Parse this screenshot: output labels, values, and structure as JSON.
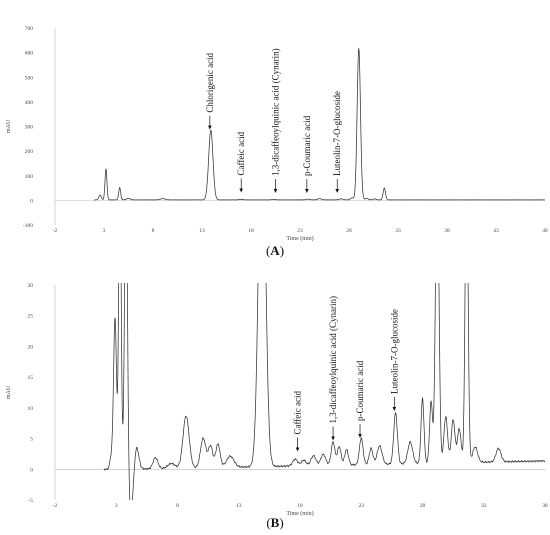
{
  "figure": {
    "panels": [
      {
        "id": "A",
        "label_text": "(A)",
        "label_letter": "A",
        "xlabel": "Time (min)",
        "ylabel": "mAU",
        "x_ticks": [
          "-2",
          "3",
          "8",
          "13",
          "18",
          "23",
          "28",
          "33",
          "38",
          "43",
          "48"
        ],
        "y_ticks": [
          "700",
          "600",
          "500",
          "400",
          "300",
          "200",
          "100",
          "0",
          "-100"
        ],
        "annotations": [
          {
            "text": "Chlorigenic acid",
            "x": 13.8,
            "arrow_tip": 275
          },
          {
            "text": "Caffeic acid",
            "x": 17.0,
            "arrow_tip": 20
          },
          {
            "text": "1,3-dicaffeoylquinic acid (Cynarin)",
            "x": 20.5,
            "arrow_tip": 18
          },
          {
            "text": "p-Coumaric acid",
            "x": 23.7,
            "arrow_tip": 18
          },
          {
            "text": "Luteolin-7-O-glucoside",
            "x": 26.8,
            "arrow_tip": 18
          }
        ]
      },
      {
        "id": "B",
        "label_text": "(B)",
        "label_letter": "B",
        "xlabel": "Time (min)",
        "ylabel": "mAU",
        "x_ticks": [
          "-2",
          "3",
          "8",
          "13",
          "18",
          "23",
          "28",
          "33",
          "38"
        ],
        "y_ticks": [
          "30",
          "25",
          "20",
          "15",
          "10",
          "5",
          "0",
          "-5"
        ],
        "annotations": [
          {
            "text": "Caffeic acid",
            "x": 17.8,
            "arrow_tip": 2.4
          },
          {
            "text": "1,3-dicaffeoylquinic acid (Cynarin)",
            "x": 20.7,
            "arrow_tip": 4.2
          },
          {
            "text": "p-Coumaric acid",
            "x": 22.9,
            "arrow_tip": 4.6
          },
          {
            "text": "Luteolin-7-O-glucoside",
            "x": 25.7,
            "arrow_tip": 9.0
          }
        ]
      }
    ]
  },
  "chart_data": [
    {
      "type": "line",
      "xlabel": "Time (min)",
      "ylabel": "mAU",
      "xlim": [
        -2,
        48
      ],
      "ylim": [
        -100,
        700
      ],
      "baseline": 2,
      "peaks": [
        {
          "t": 2.6,
          "h": 20,
          "w": 0.12
        },
        {
          "t": 3.2,
          "h": 125,
          "w": 0.1
        },
        {
          "t": 4.6,
          "h": 50,
          "w": 0.1
        },
        {
          "t": 5.5,
          "h": 6,
          "w": 0.2
        },
        {
          "t": 9.0,
          "h": 5,
          "w": 0.25
        },
        {
          "t": 13.9,
          "h": 283,
          "w": 0.22
        },
        {
          "t": 17.0,
          "h": 2,
          "w": 0.2
        },
        {
          "t": 20.3,
          "h": 2,
          "w": 0.2
        },
        {
          "t": 23.8,
          "h": 3,
          "w": 0.2
        },
        {
          "t": 25.0,
          "h": 5,
          "w": 0.2
        },
        {
          "t": 27.2,
          "h": 4,
          "w": 0.2
        },
        {
          "t": 28.3,
          "h": 8,
          "w": 0.15
        },
        {
          "t": 29.0,
          "h": 615,
          "w": 0.17
        },
        {
          "t": 29.8,
          "h": 6,
          "w": 0.15
        },
        {
          "t": 30.6,
          "h": 4,
          "w": 0.15
        },
        {
          "t": 31.6,
          "h": 48,
          "w": 0.12
        }
      ]
    },
    {
      "type": "line",
      "xlabel": "Time (min)",
      "ylabel": "mAU",
      "xlim": [
        -2,
        38
      ],
      "ylim": [
        -5,
        30
      ],
      "baseline": 0,
      "baseline_drift": 0.04,
      "peaks": [
        {
          "t": 2.6,
          "h": 2.0,
          "w": 0.12
        },
        {
          "t": 2.9,
          "h": 24.5,
          "w": 0.12
        },
        {
          "t": 3.3,
          "h": 50,
          "w": 0.1
        },
        {
          "t": 3.8,
          "h": 50,
          "w": 0.12
        },
        {
          "t": 4.2,
          "h": -7.5,
          "w": 0.25
        },
        {
          "t": 4.6,
          "h": 5,
          "w": 0.2
        },
        {
          "t": 6.2,
          "h": 1.8,
          "w": 0.2
        },
        {
          "t": 7.5,
          "h": 0.8,
          "w": 0.3
        },
        {
          "t": 8.7,
          "h": 8.5,
          "w": 0.25
        },
        {
          "t": 10.1,
          "h": 4.8,
          "w": 0.22
        },
        {
          "t": 10.7,
          "h": 3.5,
          "w": 0.18
        },
        {
          "t": 11.3,
          "h": 3.8,
          "w": 0.18
        },
        {
          "t": 12.3,
          "h": 1.8,
          "w": 0.3
        },
        {
          "t": 14.9,
          "h": 60,
          "w": 0.28
        },
        {
          "t": 17.6,
          "h": 1.1,
          "w": 0.2
        },
        {
          "t": 18.3,
          "h": 0.9,
          "w": 0.2
        },
        {
          "t": 19.1,
          "h": 1.6,
          "w": 0.2
        },
        {
          "t": 19.9,
          "h": 1.8,
          "w": 0.2
        },
        {
          "t": 20.7,
          "h": 3.8,
          "w": 0.15
        },
        {
          "t": 21.2,
          "h": 3.0,
          "w": 0.15
        },
        {
          "t": 21.8,
          "h": 2.5,
          "w": 0.15
        },
        {
          "t": 23.0,
          "h": 4.3,
          "w": 0.15
        },
        {
          "t": 23.8,
          "h": 2.6,
          "w": 0.15
        },
        {
          "t": 24.5,
          "h": 3.0,
          "w": 0.2
        },
        {
          "t": 25.8,
          "h": 8.3,
          "w": 0.15
        },
        {
          "t": 27.0,
          "h": 3.5,
          "w": 0.2
        },
        {
          "t": 28.0,
          "h": 10.5,
          "w": 0.12
        },
        {
          "t": 28.7,
          "h": 10.0,
          "w": 0.12
        },
        {
          "t": 29.2,
          "h": 50,
          "w": 0.14
        },
        {
          "t": 29.9,
          "h": 7.5,
          "w": 0.15
        },
        {
          "t": 30.5,
          "h": 7.0,
          "w": 0.15
        },
        {
          "t": 31.0,
          "h": 5.5,
          "w": 0.15
        },
        {
          "t": 31.6,
          "h": 50,
          "w": 0.12
        },
        {
          "t": 32.3,
          "h": 2.5,
          "w": 0.2
        },
        {
          "t": 34.2,
          "h": 2.2,
          "w": 0.2
        }
      ]
    }
  ]
}
